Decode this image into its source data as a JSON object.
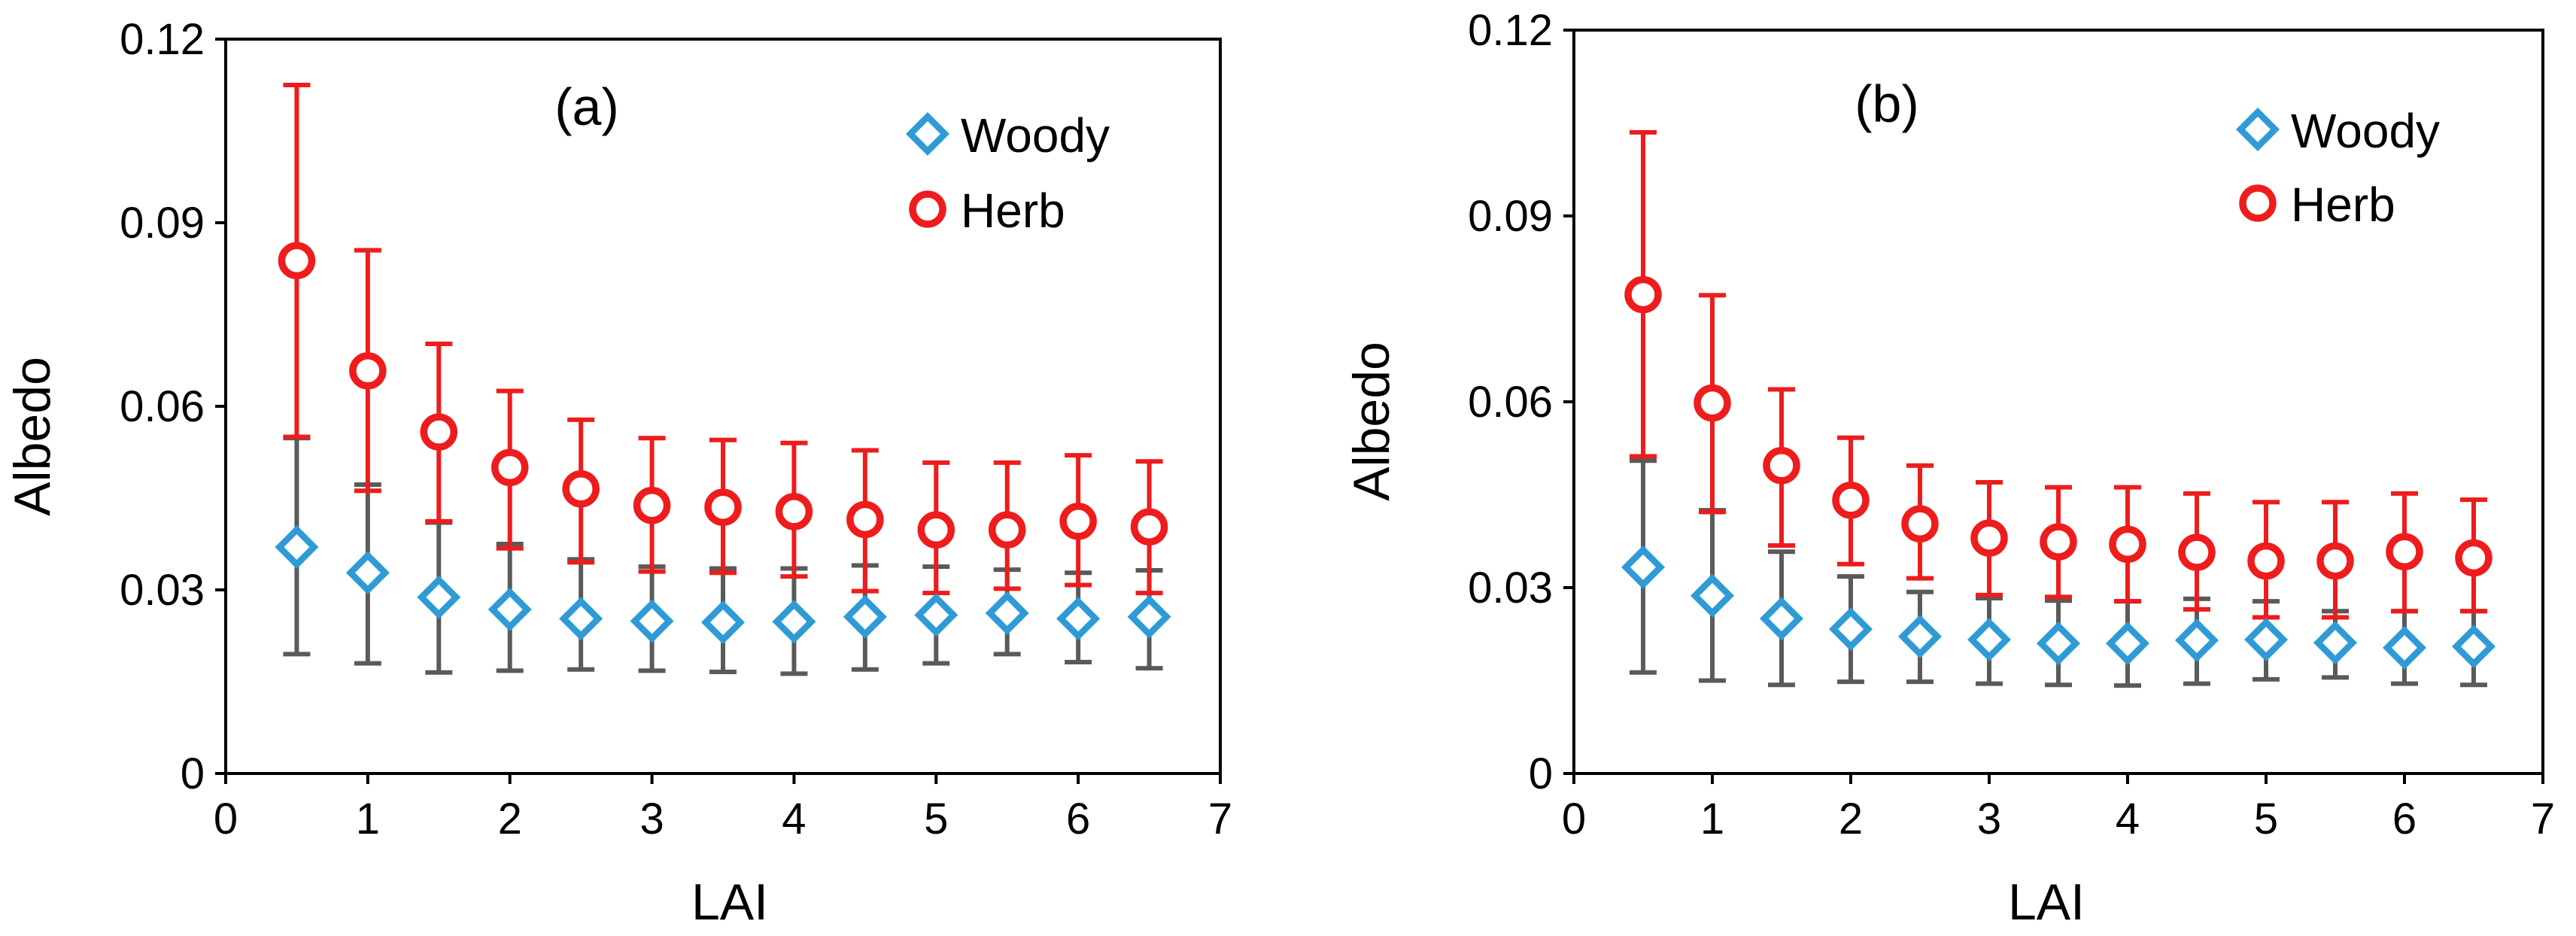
{
  "chart_data": [
    {
      "type": "scatter",
      "panel_label": "(a)",
      "xlabel": "LAI",
      "ylabel": "Albedo",
      "xlim": [
        0,
        7
      ],
      "ylim": [
        0,
        0.12
      ],
      "xticks": [
        "0",
        "1",
        "2",
        "3",
        "4",
        "5",
        "6",
        "7"
      ],
      "yticks": [
        "0",
        "0.03",
        "0.06",
        "0.09",
        "0.12"
      ],
      "legend_position": "top-right",
      "x": [
        0.5,
        1,
        1.5,
        2,
        2.5,
        3,
        3.5,
        4,
        4.5,
        5,
        5.5,
        6,
        6.5
      ],
      "series": [
        {
          "name": "Woody",
          "color": "#2E9BD6",
          "marker": "diamond",
          "error_color": "#5A5A5A",
          "values": [
            0.037,
            0.0328,
            0.0288,
            0.0268,
            0.0253,
            0.0249,
            0.0247,
            0.0248,
            0.0256,
            0.0259,
            0.0262,
            0.0253,
            0.0256
          ],
          "lower": [
            0.0195,
            0.018,
            0.0165,
            0.0168,
            0.017,
            0.0168,
            0.0166,
            0.0163,
            0.017,
            0.018,
            0.0195,
            0.0182,
            0.0172
          ],
          "upper": [
            0.0548,
            0.0472,
            0.041,
            0.0375,
            0.035,
            0.0338,
            0.0335,
            0.0335,
            0.034,
            0.0338,
            0.0333,
            0.0328,
            0.0332
          ]
        },
        {
          "name": "Herb",
          "color": "#EE1C1C",
          "marker": "circle",
          "error_color": "#EE1C1C",
          "values": [
            0.0838,
            0.0658,
            0.0558,
            0.05,
            0.0465,
            0.0438,
            0.0435,
            0.0428,
            0.0415,
            0.0398,
            0.0398,
            0.0412,
            0.0403
          ],
          "lower": [
            0.055,
            0.0462,
            0.0412,
            0.0368,
            0.0345,
            0.033,
            0.0328,
            0.0322,
            0.0298,
            0.0295,
            0.0302,
            0.0308,
            0.0295
          ],
          "upper": [
            0.1125,
            0.0855,
            0.0702,
            0.0625,
            0.0578,
            0.0548,
            0.0545,
            0.054,
            0.0528,
            0.0508,
            0.0508,
            0.052,
            0.051
          ]
        }
      ]
    },
    {
      "type": "scatter",
      "panel_label": "(b)",
      "xlabel": "LAI",
      "ylabel": "Albedo",
      "xlim": [
        0,
        7
      ],
      "ylim": [
        0,
        0.12
      ],
      "xticks": [
        "0",
        "1",
        "2",
        "3",
        "4",
        "5",
        "6",
        "7"
      ],
      "yticks": [
        "0",
        "0.03",
        "0.06",
        "0.09",
        "0.12"
      ],
      "legend_position": "top-right",
      "x": [
        0.5,
        1,
        1.5,
        2,
        2.5,
        3,
        3.5,
        4,
        4.5,
        5,
        5.5,
        6,
        6.5
      ],
      "series": [
        {
          "name": "Woody",
          "color": "#2E9BD6",
          "marker": "diamond",
          "error_color": "#5A5A5A",
          "values": [
            0.0333,
            0.0287,
            0.025,
            0.0233,
            0.0221,
            0.0216,
            0.021,
            0.021,
            0.0215,
            0.0216,
            0.0211,
            0.0203,
            0.0205
          ],
          "lower": [
            0.0163,
            0.015,
            0.0143,
            0.0148,
            0.0148,
            0.0145,
            0.0143,
            0.0142,
            0.0145,
            0.0152,
            0.0155,
            0.0145,
            0.0143
          ],
          "upper": [
            0.0505,
            0.0425,
            0.0358,
            0.0318,
            0.0293,
            0.0283,
            0.0279,
            0.0278,
            0.0282,
            0.0278,
            0.0262,
            0.0262,
            0.0262
          ]
        },
        {
          "name": "Herb",
          "color": "#EE1C1C",
          "marker": "circle",
          "error_color": "#EE1C1C",
          "values": [
            0.0773,
            0.0598,
            0.0497,
            0.0441,
            0.0403,
            0.038,
            0.0374,
            0.037,
            0.0357,
            0.0343,
            0.0343,
            0.0358,
            0.0348
          ],
          "lower": [
            0.0512,
            0.0422,
            0.0368,
            0.0338,
            0.0315,
            0.0288,
            0.0285,
            0.0278,
            0.0265,
            0.0252,
            0.0252,
            0.0262,
            0.0262
          ],
          "upper": [
            0.1035,
            0.0772,
            0.062,
            0.0542,
            0.0497,
            0.047,
            0.0462,
            0.0462,
            0.0452,
            0.0438,
            0.0438,
            0.0452,
            0.0442
          ]
        }
      ]
    }
  ]
}
